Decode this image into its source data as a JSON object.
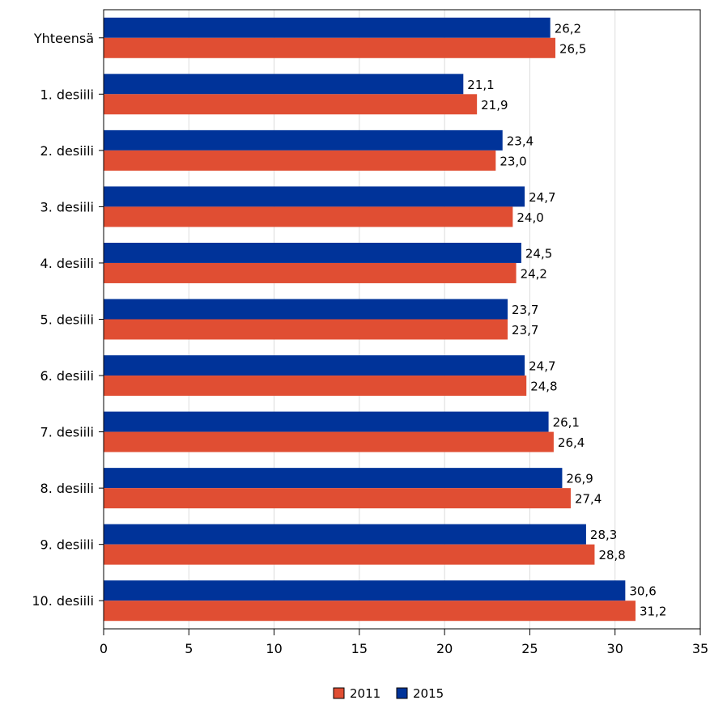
{
  "chart_data": {
    "type": "bar",
    "orientation": "horizontal",
    "categories": [
      "Yhteensä",
      "1. desiili",
      "2. desiili",
      "3. desiili",
      "4. desiili",
      "5. desiili",
      "6. desiili",
      "7. desiili",
      "8. desiili",
      "9. desiili",
      "10. desiili"
    ],
    "series": [
      {
        "name": "2015",
        "color": "#003399",
        "values": [
          26.2,
          21.1,
          23.4,
          24.7,
          24.5,
          23.7,
          24.7,
          26.1,
          26.9,
          28.3,
          30.6
        ],
        "labels": [
          "26,2",
          "21,1",
          "23,4",
          "24,7",
          "24,5",
          "23,7",
          "24,7",
          "26,1",
          "26,9",
          "28,3",
          "30,6"
        ]
      },
      {
        "name": "2011",
        "color": "#e04e33",
        "values": [
          26.5,
          21.9,
          23.0,
          24.0,
          24.2,
          23.7,
          24.8,
          26.4,
          27.4,
          28.8,
          31.2
        ],
        "labels": [
          "26,5",
          "21,9",
          "23,0",
          "24,0",
          "24,2",
          "23,7",
          "24,8",
          "26,4",
          "27,4",
          "28,8",
          "31,2"
        ]
      }
    ],
    "xlim": [
      0,
      35
    ],
    "xticks": [
      0,
      5,
      10,
      15,
      20,
      25,
      30,
      35
    ],
    "xtick_labels": [
      "0",
      "5",
      "10",
      "15",
      "20",
      "25",
      "30",
      "35"
    ],
    "grid": true,
    "legend": {
      "position": "bottom-center",
      "order": [
        "2011",
        "2015"
      ]
    }
  }
}
